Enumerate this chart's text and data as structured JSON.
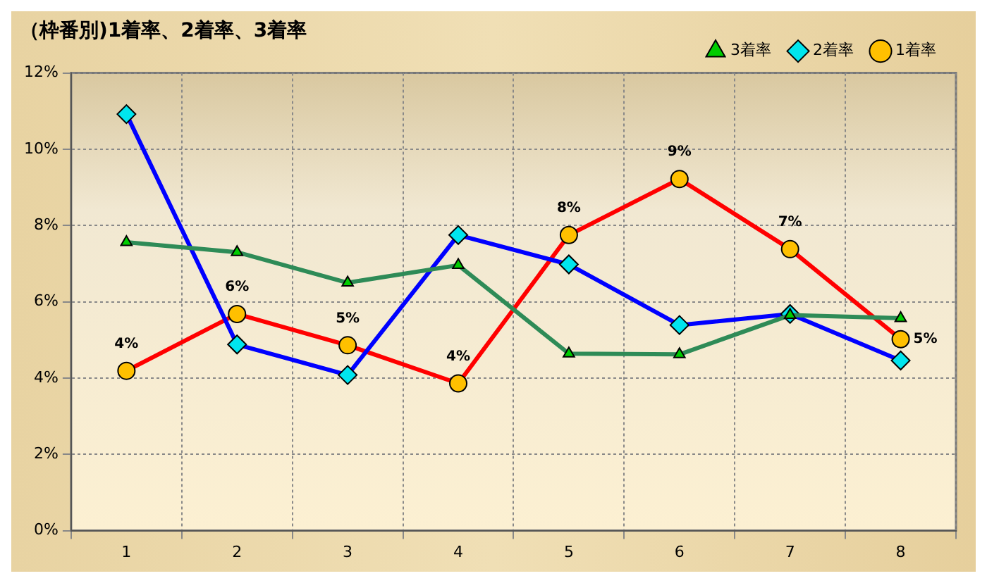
{
  "chart_data": {
    "type": "line",
    "title": "（枠番別)1着率、2着率、3着率",
    "categories": [
      "1",
      "2",
      "3",
      "4",
      "5",
      "6",
      "7",
      "8"
    ],
    "series": [
      {
        "name": "3着率",
        "color": "#2e8b57",
        "marker": "triangle",
        "values": [
          7.56,
          7.3,
          6.5,
          6.96,
          4.64,
          4.62,
          5.65,
          5.57
        ]
      },
      {
        "name": "2着率",
        "color": "#0000ff",
        "marker": "diamond",
        "values": [
          10.92,
          4.88,
          4.08,
          7.75,
          6.98,
          5.39,
          5.68,
          4.46
        ]
      },
      {
        "name": "1着率",
        "color": "#ff0000",
        "marker": "circle",
        "values": [
          4.19,
          5.68,
          4.86,
          3.86,
          7.75,
          9.22,
          7.38,
          5.02
        ],
        "value_labels": [
          "4%",
          "6%",
          "5%",
          "4%",
          "8%",
          "9%",
          "7%",
          "5%"
        ]
      }
    ],
    "ylim": [
      0,
      12
    ],
    "yticks": [
      {
        "value": 0,
        "label": "0%"
      },
      {
        "value": 2,
        "label": "2%"
      },
      {
        "value": 4,
        "label": "4%"
      },
      {
        "value": 6,
        "label": "6%"
      },
      {
        "value": 8,
        "label": "8%"
      },
      {
        "value": 10,
        "label": "10%"
      },
      {
        "value": 12,
        "label": "12%"
      }
    ],
    "grid": true,
    "legend": "top right",
    "line_style": "solid"
  }
}
